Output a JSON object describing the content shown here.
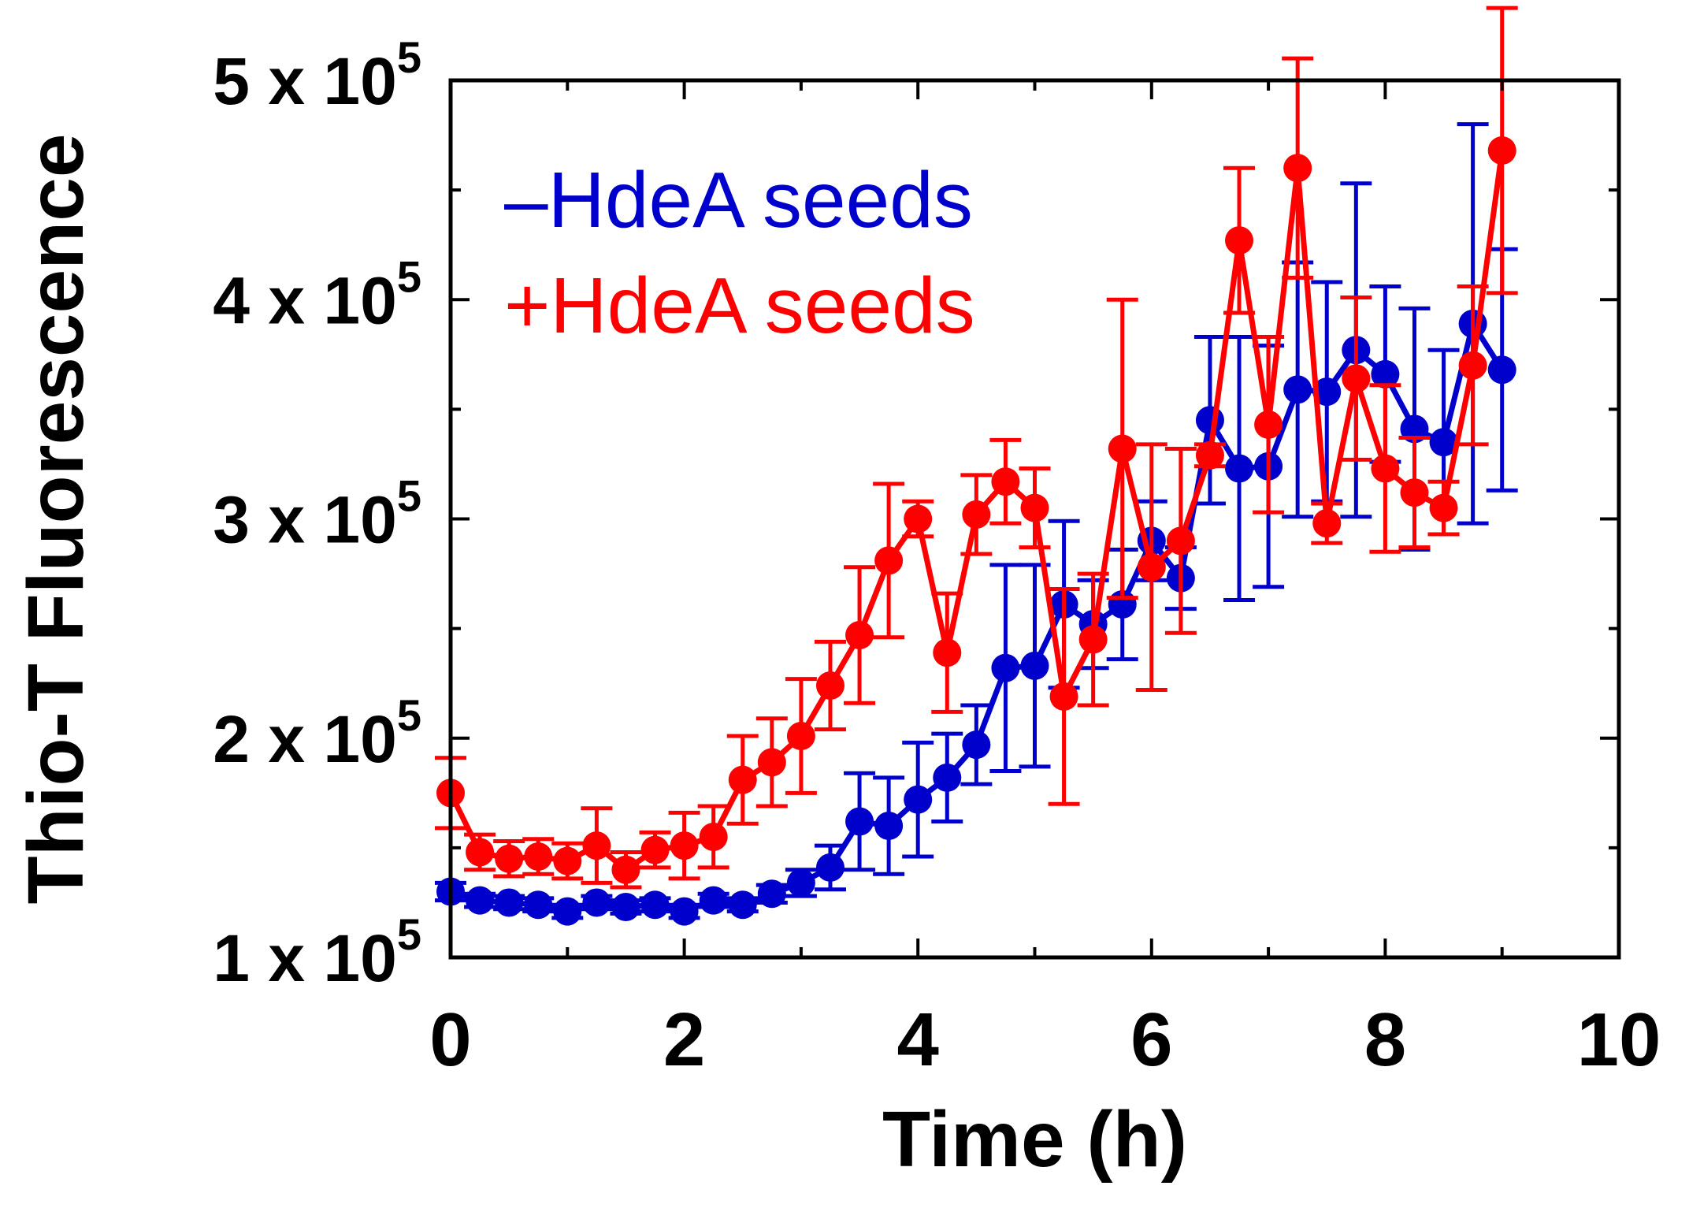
{
  "chart_data": {
    "type": "line",
    "title": "",
    "xlabel": "Time (h)",
    "ylabel": "Thio-T Fluorescence",
    "xlim": [
      0,
      10
    ],
    "ylim": [
      100000,
      500000
    ],
    "grid": false,
    "legend_position": "top-left",
    "x_ticks": [
      {
        "value": 0,
        "label": "0"
      },
      {
        "value": 2,
        "label": "2"
      },
      {
        "value": 4,
        "label": "4"
      },
      {
        "value": 6,
        "label": "6"
      },
      {
        "value": 8,
        "label": "8"
      },
      {
        "value": 10,
        "label": "10"
      }
    ],
    "y_ticks": [
      {
        "value": 100000,
        "mantissa": "1 x 10",
        "exponent": "5"
      },
      {
        "value": 200000,
        "mantissa": "2 x 10",
        "exponent": "5"
      },
      {
        "value": 300000,
        "mantissa": "3 x 10",
        "exponent": "5"
      },
      {
        "value": 400000,
        "mantissa": "4 x 10",
        "exponent": "5"
      },
      {
        "value": 500000,
        "mantissa": "5 x 10",
        "exponent": "5"
      }
    ],
    "x": [
      0,
      0.25,
      0.5,
      0.75,
      1,
      1.25,
      1.5,
      1.75,
      2,
      2.25,
      2.5,
      2.75,
      3,
      3.25,
      3.5,
      3.75,
      4,
      4.25,
      4.5,
      4.75,
      5,
      5.25,
      5.5,
      5.75,
      6,
      6.25,
      6.5,
      6.75,
      7,
      7.25,
      7.5,
      7.75,
      8,
      8.25,
      8.5,
      8.75,
      9
    ],
    "series": [
      {
        "name": "–HdeA seeds",
        "legend_label": "–HdeA seeds",
        "color": "#0000cc",
        "values": [
          130000,
          126000,
          125000,
          124000,
          121000,
          125000,
          123000,
          124000,
          121000,
          126000,
          124000,
          129000,
          134000,
          141000,
          162000,
          160000,
          172000,
          182000,
          197000,
          232000,
          233000,
          261000,
          252000,
          261000,
          290000,
          273000,
          345000,
          323000,
          324000,
          359000,
          358000,
          377000,
          366000,
          341000,
          335000,
          389000,
          368000
        ],
        "errors": [
          4000,
          3000,
          3000,
          3000,
          3000,
          3000,
          3000,
          3000,
          3000,
          3000,
          3000,
          4000,
          6000,
          10000,
          22000,
          22000,
          26000,
          20000,
          18000,
          47000,
          46000,
          38000,
          20000,
          25000,
          18000,
          14000,
          38000,
          60000,
          55000,
          58000,
          50000,
          76000,
          40000,
          55000,
          42000,
          91000,
          55000
        ]
      },
      {
        "name": "+HdeA seeds",
        "legend_label": "+HdeA seeds",
        "color": "#ff0000",
        "values": [
          175000,
          148000,
          145000,
          146000,
          144000,
          151000,
          140000,
          149000,
          151000,
          155000,
          181000,
          189000,
          201000,
          224000,
          247000,
          281000,
          300000,
          239000,
          302000,
          317000,
          305000,
          219000,
          245000,
          332000,
          278000,
          290000,
          329000,
          427000,
          343000,
          460000,
          298000,
          364000,
          323000,
          312000,
          305000,
          370000,
          468000
        ],
        "errors": [
          16000,
          8000,
          8000,
          8000,
          8000,
          17000,
          8000,
          8000,
          15000,
          14000,
          20000,
          20000,
          26000,
          20000,
          31000,
          35000,
          8000,
          27000,
          18000,
          19000,
          18000,
          49000,
          30000,
          68000,
          56000,
          42000,
          5000,
          33000,
          40000,
          50000,
          9000,
          37000,
          38000,
          25000,
          12000,
          36000,
          65000
        ]
      }
    ]
  }
}
